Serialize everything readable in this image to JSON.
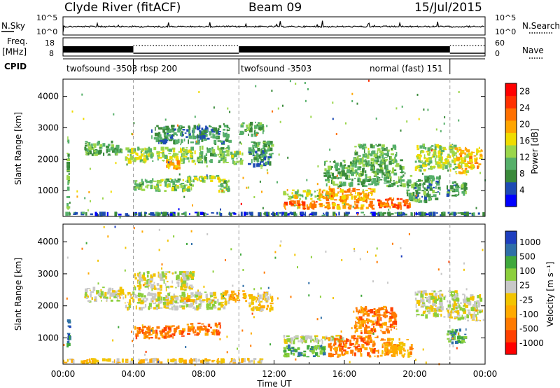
{
  "header": {
    "station": "Clyde River (fitACF)",
    "beam": "Beam 09",
    "date": "15/Jul/2015"
  },
  "top_panels": {
    "nsky_label": "N.Sky",
    "nsearch_label": "N.Search",
    "nsky_ticks": [
      "10^5",
      "10^0"
    ],
    "nsearch_ticks": [
      "10^5",
      "10^0"
    ],
    "freq_label_1": "Freq.",
    "freq_label_2": "[MHz]",
    "freq_ticks": [
      "18",
      "8"
    ],
    "nave_label": "Nave",
    "nave_ticks": [
      "60",
      "0"
    ],
    "cpid_label": "CPID",
    "cpid_segments": [
      {
        "label": "twofsound -3503",
        "start": 0,
        "end": 4
      },
      {
        "label": "rbsp 200",
        "start": 4,
        "end": 10
      },
      {
        "label": "twofsound -3503",
        "start": 10,
        "end": 22
      },
      {
        "label": "normal (fast) 151",
        "start": 22,
        "end": 24
      }
    ]
  },
  "colors": {
    "power": [
      "#0000ff",
      "#1e4bb4",
      "#3a8a3a",
      "#56b06a",
      "#9bd64b",
      "#f0dc00",
      "#ffa500",
      "#ff7000",
      "#ff3000",
      "#ff0000"
    ],
    "velocity": [
      "#ff0000",
      "#ff4000",
      "#ff7a00",
      "#ffaa00",
      "#f2c400",
      "#c8c8c8",
      "#8ccf3c",
      "#3fa83c",
      "#2f6fa8",
      "#1e3fbf"
    ],
    "dashed_line": "#a0a0a0"
  },
  "chart_data": [
    {
      "type": "heatmap",
      "name": "power",
      "xlabel": "",
      "ylabel": "Slant Range [km]",
      "x_range": [
        0,
        24
      ],
      "ylim": [
        180,
        4550
      ],
      "x_ticks": [
        "00:00",
        "04:00",
        "08:00",
        "12:00",
        "16:00",
        "20:00",
        "00:00"
      ],
      "y_ticks": [
        1000,
        2000,
        3000,
        4000
      ],
      "colorbar": {
        "label": "Power [dB]",
        "ticks": [
          4,
          8,
          12,
          16,
          20,
          24,
          28
        ],
        "range": [
          0,
          30
        ]
      },
      "regions": [
        {
          "t0": 0.2,
          "t1": 0.4,
          "r0": 300,
          "r1": 2800,
          "v": 10
        },
        {
          "t0": 1.2,
          "t1": 3.5,
          "r0": 2100,
          "r1": 2600,
          "v": 10
        },
        {
          "t0": 3.5,
          "t1": 7.6,
          "r0": 1850,
          "r1": 2400,
          "v": 14
        },
        {
          "t0": 7.6,
          "t1": 9.5,
          "r0": 1850,
          "r1": 2450,
          "v": 11
        },
        {
          "t0": 5.8,
          "t1": 6.7,
          "r0": 1650,
          "r1": 2000,
          "v": 20
        },
        {
          "t0": 5.0,
          "t1": 9.6,
          "r0": 2450,
          "r1": 3100,
          "v": 8
        },
        {
          "t0": 4.0,
          "t1": 7.5,
          "r0": 950,
          "r1": 1400,
          "v": 12
        },
        {
          "t0": 7.0,
          "t1": 9.0,
          "r0": 1250,
          "r1": 1500,
          "v": 14
        },
        {
          "t0": 8.8,
          "t1": 9.6,
          "r0": 900,
          "r1": 1400,
          "v": 12
        },
        {
          "t0": 9.5,
          "t1": 10.3,
          "r0": 1800,
          "r1": 2300,
          "v": 14
        },
        {
          "t0": 10.0,
          "t1": 11.5,
          "r0": 2700,
          "r1": 3200,
          "v": 10
        },
        {
          "t0": 10.5,
          "t1": 12.0,
          "r0": 1700,
          "r1": 2600,
          "v": 9
        },
        {
          "t0": 12.5,
          "t1": 14.5,
          "r0": 380,
          "r1": 700,
          "v": 23
        },
        {
          "t0": 12.5,
          "t1": 15.5,
          "r0": 700,
          "r1": 1050,
          "v": 15
        },
        {
          "t0": 14.5,
          "t1": 17.8,
          "r0": 380,
          "r1": 1100,
          "v": 20
        },
        {
          "t0": 17.8,
          "t1": 19.8,
          "r0": 380,
          "r1": 800,
          "v": 24
        },
        {
          "t0": 14.8,
          "t1": 19.5,
          "r0": 1100,
          "r1": 2000,
          "v": 10
        },
        {
          "t0": 16.5,
          "t1": 19.0,
          "r0": 1800,
          "r1": 2500,
          "v": 11
        },
        {
          "t0": 19.5,
          "t1": 21.5,
          "r0": 600,
          "r1": 1500,
          "v": 9
        },
        {
          "t0": 20.0,
          "t1": 22.5,
          "r0": 1600,
          "r1": 2500,
          "v": 14
        },
        {
          "t0": 22.2,
          "t1": 23.9,
          "r0": 1500,
          "r1": 2400,
          "v": 18
        },
        {
          "t0": 21.8,
          "t1": 23.0,
          "r0": 800,
          "r1": 1300,
          "v": 9
        },
        {
          "t0": 0.0,
          "t1": 24.0,
          "r0": 190,
          "r1": 330,
          "v": 6
        }
      ]
    },
    {
      "type": "heatmap",
      "name": "velocity",
      "xlabel": "Time UT",
      "ylabel": "Slant Range [km]",
      "x_range": [
        0,
        24
      ],
      "ylim": [
        180,
        4550
      ],
      "x_ticks": [
        "00:00",
        "04:00",
        "08:00",
        "12:00",
        "16:00",
        "20:00",
        "00:00"
      ],
      "y_ticks": [
        1000,
        2000,
        3000,
        4000
      ],
      "colorbar": {
        "label": "Velocity [m s⁻¹]",
        "ticks": [
          "1000",
          "500",
          "100",
          "25",
          "-25",
          "-100",
          "-500",
          "-1000"
        ]
      },
      "regions": [
        {
          "t0": 0.2,
          "t1": 0.5,
          "r0": 700,
          "r1": 1600,
          "c": 8
        },
        {
          "t0": 1.2,
          "t1": 3.5,
          "r0": 2100,
          "r1": 2600,
          "c": 5
        },
        {
          "t0": 3.5,
          "t1": 9.5,
          "r0": 1850,
          "r1": 2450,
          "c": 5
        },
        {
          "t0": 4.0,
          "t1": 7.5,
          "r0": 2450,
          "r1": 3100,
          "c": 5
        },
        {
          "t0": 4.0,
          "t1": 7.0,
          "r0": 950,
          "r1": 1400,
          "c": 2
        },
        {
          "t0": 7.0,
          "t1": 9.0,
          "r0": 1050,
          "r1": 1500,
          "c": 2
        },
        {
          "t0": 6.5,
          "t1": 7.5,
          "r0": 2100,
          "r1": 2300,
          "c": 3
        },
        {
          "t0": 9.0,
          "t1": 10.5,
          "r0": 2100,
          "r1": 2500,
          "c": 3
        },
        {
          "t0": 10.5,
          "t1": 12.0,
          "r0": 1800,
          "r1": 2500,
          "c": 4
        },
        {
          "t0": 0.0,
          "t1": 11.5,
          "r0": 190,
          "r1": 380,
          "c": 4
        },
        {
          "t0": 12.5,
          "t1": 15.0,
          "r0": 380,
          "r1": 800,
          "c": 7
        },
        {
          "t0": 12.5,
          "t1": 16.0,
          "r0": 800,
          "r1": 1100,
          "c": 5
        },
        {
          "t0": 15.0,
          "t1": 18.0,
          "r0": 380,
          "r1": 1100,
          "c": 2
        },
        {
          "t0": 18.0,
          "t1": 20.0,
          "r0": 380,
          "r1": 1000,
          "c": 3
        },
        {
          "t0": 16.5,
          "t1": 19.0,
          "r0": 1100,
          "r1": 2000,
          "c": 2
        },
        {
          "t0": 20.0,
          "t1": 22.5,
          "r0": 1600,
          "r1": 2500,
          "c": 5
        },
        {
          "t0": 22.2,
          "t1": 23.9,
          "r0": 1500,
          "r1": 2400,
          "c": 5
        },
        {
          "t0": 21.8,
          "t1": 23.0,
          "r0": 800,
          "r1": 1300,
          "c": 7
        }
      ]
    }
  ]
}
